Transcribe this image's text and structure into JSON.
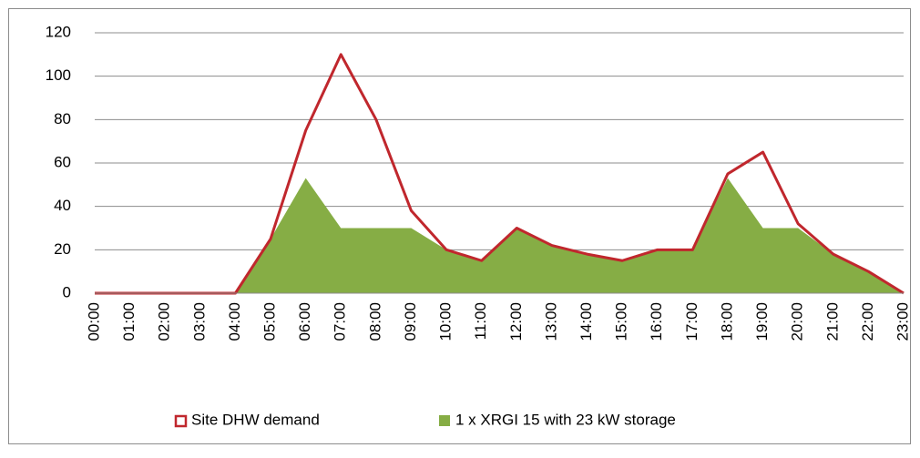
{
  "chart_data": {
    "type": "line",
    "categories": [
      "00:00",
      "01:00",
      "02:00",
      "03:00",
      "04:00",
      "05:00",
      "06:00",
      "07:00",
      "08:00",
      "09:00",
      "10:00",
      "11:00",
      "12:00",
      "13:00",
      "14:00",
      "15:00",
      "16:00",
      "17:00",
      "18:00",
      "19:00",
      "20:00",
      "21:00",
      "22:00",
      "23:00"
    ],
    "series": [
      {
        "name": "Site DHW demand",
        "type": "line",
        "color": "#c0272d",
        "values": [
          0,
          0,
          0,
          0,
          0,
          25,
          75,
          110,
          80,
          38,
          20,
          15,
          30,
          22,
          18,
          15,
          20,
          20,
          55,
          65,
          32,
          18,
          10,
          0
        ]
      },
      {
        "name": "1 x XRGI 15 with 23 kW storage",
        "type": "area",
        "color": "#86ad45",
        "values": [
          0,
          0,
          0,
          0,
          0,
          25,
          53,
          30,
          30,
          30,
          20,
          15,
          30,
          22,
          18,
          15,
          20,
          20,
          53,
          30,
          30,
          18,
          10,
          0
        ]
      }
    ],
    "ylim": [
      0,
      120
    ],
    "yticks": [
      0,
      20,
      40,
      60,
      80,
      100,
      120
    ],
    "grid": true,
    "legend": "bottom"
  }
}
